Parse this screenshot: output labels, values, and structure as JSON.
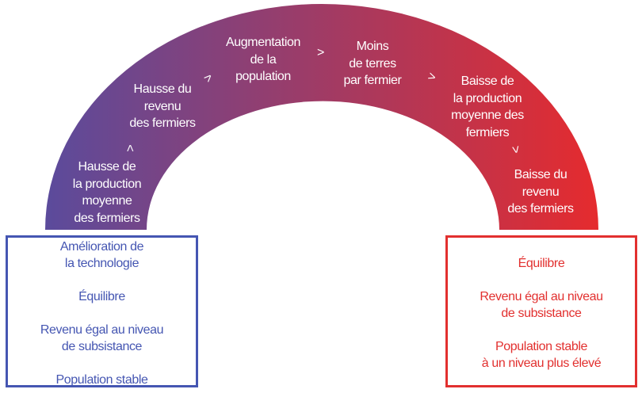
{
  "colors": {
    "start": "#5b4b9c",
    "end": "#e52b2e",
    "left_box": "#4556b2",
    "right_box": "#e2302f"
  },
  "arch_steps": [
    {
      "lines": [
        "Hausse de",
        "la production",
        "moyenne",
        "des fermiers"
      ]
    },
    {
      "lines": [
        "Hausse du",
        "revenu",
        "des fermiers"
      ]
    },
    {
      "lines": [
        "Augmentation",
        "de la",
        "population"
      ]
    },
    {
      "lines": [
        "Moins",
        "de terres",
        "par fermier"
      ]
    },
    {
      "lines": [
        "Baisse de",
        "la production",
        "moyenne des",
        "fermiers"
      ]
    },
    {
      "lines": [
        "Baisse du",
        "revenu",
        "des fermiers"
      ]
    }
  ],
  "arrow_icon": "chevron-arrow",
  "left_box": {
    "lines": [
      "Amélioration de",
      "la technologie",
      "Équilibre",
      "Revenu égal au niveau",
      "de subsistance",
      "Population stable"
    ]
  },
  "right_box": {
    "lines": [
      "Équilibre",
      "Revenu égal au niveau",
      "de subsistance",
      "Population stable",
      "à un niveau plus élevé"
    ]
  }
}
